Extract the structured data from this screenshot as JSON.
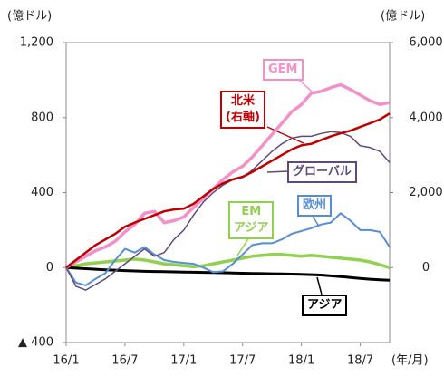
{
  "chart_data": {
    "type": "line",
    "y_label": "(億ドル)",
    "y2_label": "(億ドル)",
    "x_label": "(年/月)",
    "categories": [
      "16/1",
      null,
      null,
      null,
      null,
      null,
      "16/7",
      null,
      null,
      null,
      null,
      null,
      "17/1",
      null,
      null,
      null,
      null,
      null,
      "17/7",
      null,
      null,
      null,
      null,
      null,
      "18/1",
      null,
      null,
      null,
      null,
      null,
      "18/7",
      null,
      null,
      null
    ],
    "ylim": [
      -400,
      1200
    ],
    "yticks": [
      {
        "value": -400,
        "label": "▲ 400"
      },
      0,
      400,
      800,
      {
        "value": 1200,
        "label": "1,200"
      }
    ],
    "y2lim": [
      -2000,
      6000
    ],
    "y2ticks": [
      0,
      {
        "value": 2000,
        "label": "2,000"
      },
      {
        "value": 4000,
        "label": "4,000"
      },
      {
        "value": 6000,
        "label": "6,000"
      }
    ],
    "annotations": [
      "(右軸)"
    ],
    "series": [
      {
        "name": "EM\nアジア",
        "color": "#92d050",
        "values": [
          0,
          10,
          20,
          25,
          30,
          35,
          40,
          45,
          40,
          30,
          20,
          15,
          10,
          5,
          10,
          20,
          30,
          40,
          50,
          60,
          65,
          70,
          70,
          65,
          60,
          65,
          60,
          55,
          50,
          45,
          40,
          30,
          15,
          0
        ]
      },
      {
        "name": "アジア",
        "color": "#000000",
        "values": [
          0,
          -3,
          -6,
          -9,
          -12,
          -14,
          -16,
          -18,
          -20,
          -21,
          -22,
          -23,
          -24,
          -25,
          -26,
          -27,
          -28,
          -29,
          -30,
          -31,
          -32,
          -33,
          -34,
          -35,
          -36,
          -38,
          -40,
          -44,
          -48,
          -53,
          -58,
          -62,
          -65,
          -68
        ]
      },
      {
        "name": "欧州",
        "color": "#558ed5",
        "values": [
          0,
          -80,
          -95,
          -60,
          -30,
          40,
          100,
          80,
          110,
          70,
          40,
          30,
          25,
          20,
          0,
          -25,
          -20,
          20,
          70,
          120,
          130,
          130,
          150,
          180,
          195,
          210,
          230,
          240,
          290,
          250,
          200,
          200,
          190,
          110
        ]
      },
      {
        "name": "グローバル",
        "color": "#604a7b",
        "values": [
          0,
          -100,
          -120,
          -90,
          -60,
          -20,
          20,
          60,
          100,
          60,
          80,
          150,
          200,
          280,
          350,
          400,
          440,
          470,
          480,
          520,
          570,
          620,
          660,
          690,
          700,
          700,
          715,
          725,
          720,
          700,
          650,
          640,
          620,
          560
        ]
      },
      {
        "name": "GEM",
        "color": "#f490c8",
        "values": [
          0,
          30,
          60,
          90,
          110,
          140,
          190,
          230,
          290,
          300,
          240,
          250,
          270,
          320,
          370,
          420,
          470,
          510,
          540,
          590,
          650,
          710,
          770,
          830,
          870,
          930,
          940,
          960,
          975,
          950,
          920,
          890,
          870,
          880
        ]
      },
      {
        "name": "北米",
        "color": "#c00000",
        "axis": "y2",
        "values": [
          0,
          200,
          400,
          600,
          750,
          900,
          1090,
          1200,
          1300,
          1400,
          1500,
          1550,
          1570,
          1700,
          1900,
          2100,
          2250,
          2350,
          2420,
          2550,
          2700,
          2850,
          3000,
          3150,
          3260,
          3300,
          3400,
          3500,
          3580,
          3650,
          3750,
          3850,
          3950,
          4110
        ]
      }
    ]
  }
}
